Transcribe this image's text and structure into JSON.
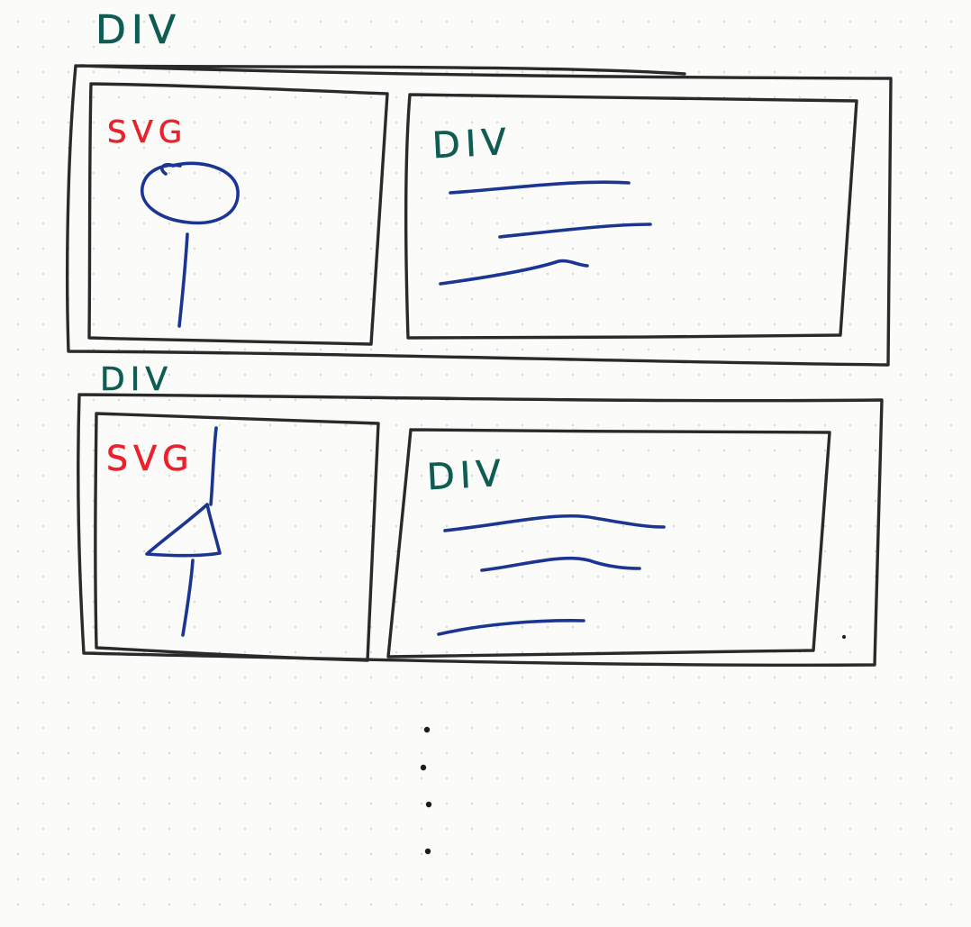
{
  "labels": {
    "outer_top": "DIV",
    "row1_left": "SVG",
    "row1_right": "DIV",
    "outer_bottom": "DIV",
    "row2_left": "SVG",
    "row2_right": "DIV"
  },
  "rows": [
    {
      "left_icon": "circle-on-stick-icon",
      "right_text_lines": 3
    },
    {
      "left_icon": "triangle-on-stick-icon",
      "right_text_lines": 3
    }
  ],
  "continuation": "vertical-ellipsis",
  "colors": {
    "div_label": "#0f5c52",
    "svg_label": "#e8232d",
    "box_stroke": "#2a2a2a",
    "drawing_ink": "#1a3592"
  }
}
